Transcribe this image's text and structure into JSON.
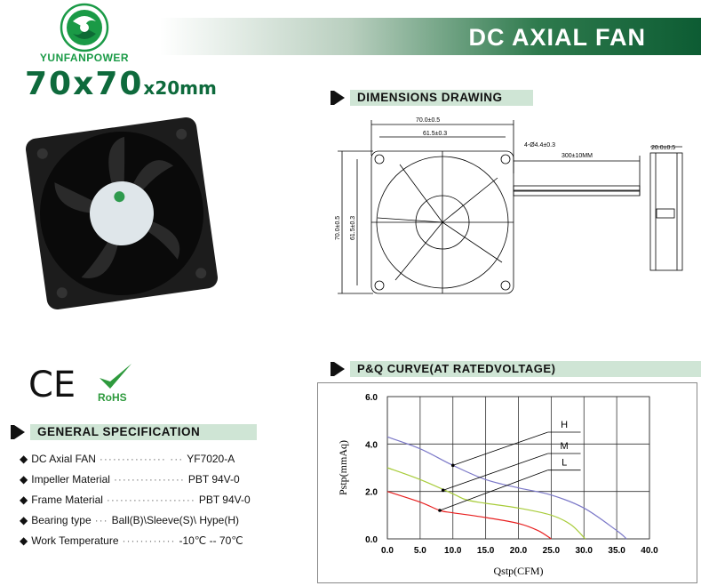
{
  "header": {
    "title": "DC AXIAL FAN",
    "brand": "YUNFANPOWER",
    "size_main": "70x70",
    "size_sub": "x20mm",
    "brand_color": "#1a9a46",
    "title_bg": "#0d5c33"
  },
  "sections": {
    "dimensions": "DIMENSIONS DRAWING",
    "pq": "P&Q CURVE(AT RATEDVOLTAGE)",
    "spec": "GENERAL SPECIFICATION"
  },
  "certifications": {
    "ce": "CE",
    "rohs": "RoHS"
  },
  "dimensions": {
    "width": "70.0±0.5",
    "hole_pitch": "61.5±0.3",
    "height": "70.0±0.5",
    "hole_pitch_v": "61.5±0.3",
    "holes": "4-Ø4.4±0.3",
    "lead": "300±10MM",
    "depth": "20.0±0.5"
  },
  "spec": [
    {
      "label": "DC Axial FAN",
      "dots": "··············· ···",
      "value": "YF7020-A"
    },
    {
      "label": "Impeller Material",
      "dots": "················",
      "value": "PBT 94V-0"
    },
    {
      "label": "Frame Material",
      "dots": "····················",
      "value": "PBT 94V-0"
    },
    {
      "label": "Bearing type",
      "dots": "···",
      "value": "Ball(B)\\Sleeve(S)\\ Hype(H)"
    },
    {
      "label": "Work Temperature",
      "dots": "············",
      "value": "-10℃ -- 70℃"
    }
  ],
  "chart_data": {
    "type": "line",
    "xlabel": "Qstp(CFM)",
    "ylabel": "Pstp(mmAq)",
    "xlim": [
      0,
      40
    ],
    "ylim": [
      0,
      6
    ],
    "xticks": [
      "0.0",
      "5.0",
      "10.0",
      "15.0",
      "20.0",
      "25.0",
      "30.0",
      "35.0",
      "40.0"
    ],
    "yticks": [
      "0.0",
      "2.0",
      "4.0",
      "6.0"
    ],
    "grid": true,
    "series": [
      {
        "name": "H",
        "color": "#7b78c8",
        "x": [
          0,
          5,
          10,
          15,
          20,
          25,
          30,
          35,
          36.5
        ],
        "y": [
          4.3,
          3.8,
          3.1,
          2.5,
          2.15,
          1.85,
          1.3,
          0.35,
          0
        ]
      },
      {
        "name": "M",
        "color": "#a8cc3a",
        "x": [
          0,
          5,
          10,
          12,
          15,
          20,
          25,
          28,
          30.2
        ],
        "y": [
          3.0,
          2.5,
          1.9,
          1.65,
          1.5,
          1.3,
          1.0,
          0.6,
          0
        ]
      },
      {
        "name": "L",
        "color": "#e82020",
        "x": [
          0,
          5,
          8,
          10,
          15,
          20,
          23,
          25
        ],
        "y": [
          2.0,
          1.55,
          1.2,
          1.1,
          0.9,
          0.65,
          0.35,
          0
        ]
      }
    ]
  }
}
